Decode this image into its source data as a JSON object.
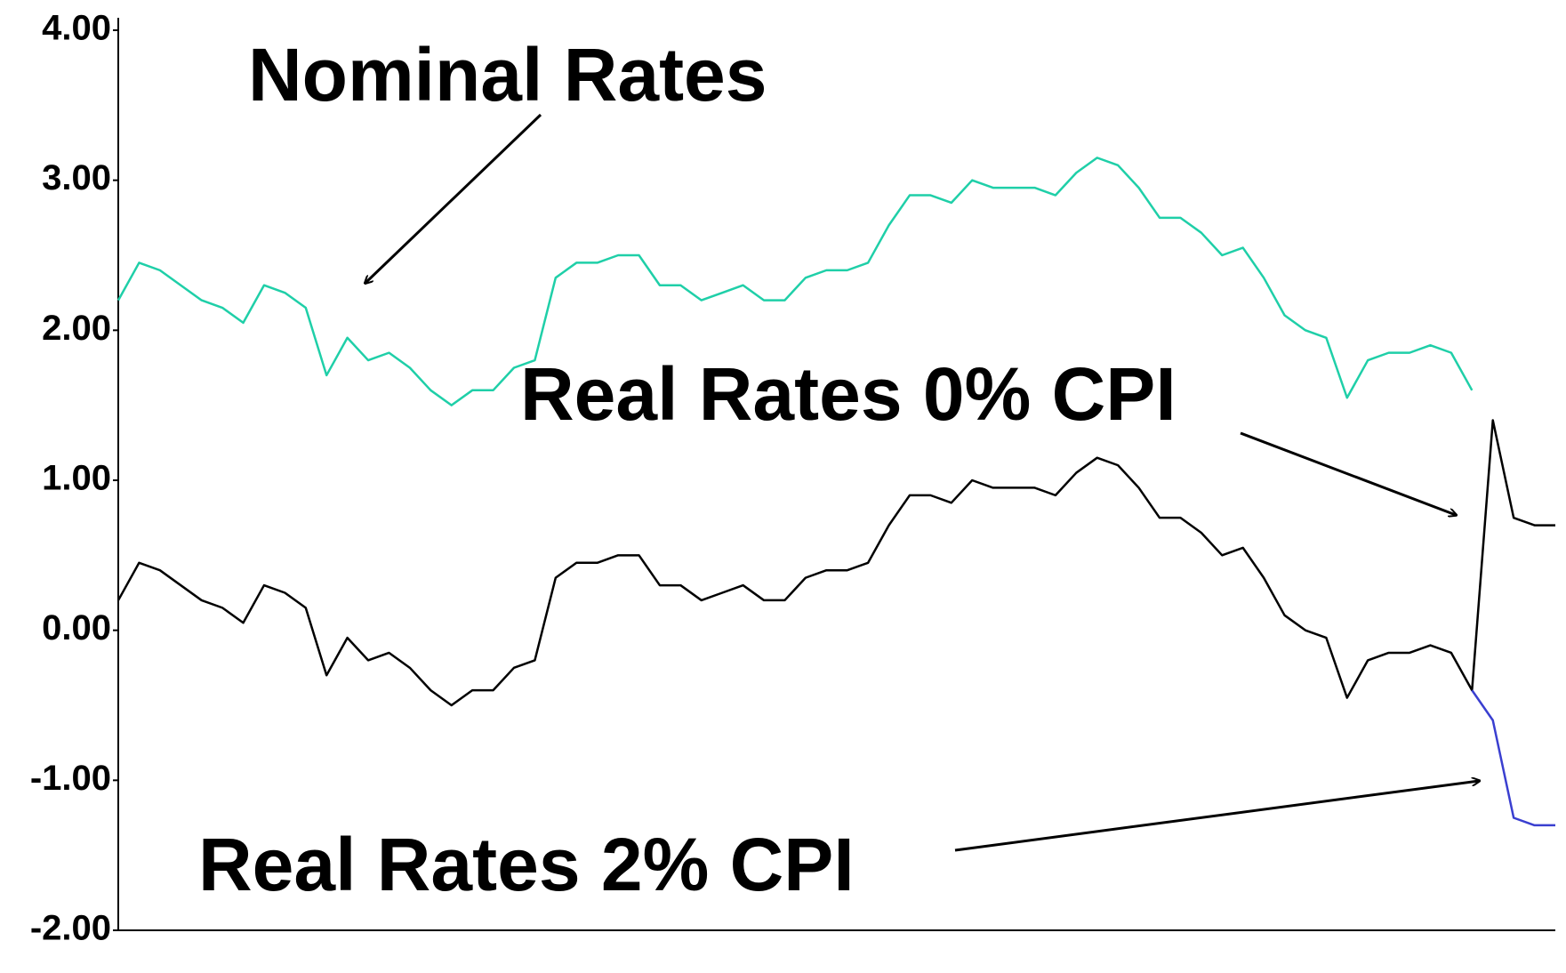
{
  "chart_data": {
    "type": "line",
    "annotations": [
      "Nominal Rates",
      "Real Rates 0% CPI",
      "Real Rates 2% CPI"
    ],
    "x": [
      0,
      1,
      2,
      3,
      4,
      5,
      6,
      7,
      8,
      9,
      10,
      11,
      12,
      13,
      14,
      15,
      16,
      17,
      18,
      19,
      20,
      21,
      22,
      23,
      24,
      25,
      26,
      27,
      28,
      29,
      30,
      31,
      32,
      33,
      34,
      35,
      36,
      37,
      38,
      39,
      40,
      41,
      42,
      43,
      44,
      45,
      46,
      47,
      48,
      49,
      50,
      51,
      52,
      53,
      54,
      55,
      56,
      57,
      58,
      59,
      60,
      61,
      62,
      63,
      64,
      65,
      66,
      67,
      68,
      69
    ],
    "xlim": [
      0,
      69
    ],
    "series": [
      {
        "name": "Nominal Rates",
        "color": "#1fcfa8",
        "values": [
          2.2,
          2.45,
          2.4,
          2.3,
          2.2,
          2.15,
          2.05,
          2.3,
          2.25,
          2.15,
          1.7,
          1.95,
          1.8,
          1.85,
          1.75,
          1.6,
          1.5,
          1.6,
          1.6,
          1.75,
          1.8,
          2.35,
          2.45,
          2.45,
          2.5,
          2.5,
          2.3,
          2.3,
          2.2,
          2.25,
          2.3,
          2.2,
          2.2,
          2.35,
          2.4,
          2.4,
          2.45,
          2.7,
          2.9,
          2.9,
          2.85,
          3.0,
          2.95,
          2.95,
          2.95,
          2.9,
          3.05,
          3.15,
          3.1,
          2.95,
          2.75,
          2.75,
          2.65,
          2.5,
          2.55,
          2.35,
          2.1,
          2.0,
          1.95,
          1.55,
          1.8,
          1.85,
          1.85,
          1.9,
          1.85,
          1.6,
          null,
          null,
          null,
          null
        ]
      },
      {
        "name": "Real Rates 0% CPI",
        "color": "#000000",
        "values": [
          0.2,
          0.45,
          0.4,
          0.3,
          0.2,
          0.15,
          0.05,
          0.3,
          0.25,
          0.15,
          -0.3,
          -0.05,
          -0.2,
          -0.15,
          -0.25,
          -0.4,
          -0.5,
          -0.4,
          -0.4,
          -0.25,
          -0.2,
          0.35,
          0.45,
          0.45,
          0.5,
          0.5,
          0.3,
          0.3,
          0.2,
          0.25,
          0.3,
          0.2,
          0.2,
          0.35,
          0.4,
          0.4,
          0.45,
          0.7,
          0.9,
          0.9,
          0.85,
          1.0,
          0.95,
          0.95,
          0.95,
          0.9,
          1.05,
          1.15,
          1.1,
          0.95,
          0.75,
          0.75,
          0.65,
          0.5,
          0.55,
          0.35,
          0.1,
          0.0,
          -0.05,
          -0.45,
          -0.2,
          -0.15,
          -0.15,
          -0.1,
          -0.15,
          -0.4,
          1.4,
          0.75,
          0.7,
          0.7
        ]
      },
      {
        "name": "Real Rates 2% CPI",
        "color": "#3a3fd0",
        "values": [
          null,
          null,
          null,
          null,
          null,
          null,
          null,
          null,
          null,
          null,
          null,
          null,
          null,
          null,
          null,
          null,
          null,
          null,
          null,
          null,
          null,
          null,
          null,
          null,
          null,
          null,
          null,
          null,
          null,
          null,
          null,
          null,
          null,
          null,
          null,
          null,
          null,
          null,
          null,
          null,
          null,
          null,
          null,
          null,
          null,
          null,
          null,
          null,
          null,
          null,
          null,
          null,
          null,
          null,
          null,
          null,
          null,
          null,
          null,
          null,
          null,
          null,
          null,
          null,
          null,
          -0.4,
          -0.6,
          -1.25,
          -1.3,
          -1.3
        ]
      }
    ],
    "ylim": [
      -2,
      4
    ],
    "yticks": [
      {
        "value": 4,
        "label": "4.00"
      },
      {
        "value": 3,
        "label": "3.00"
      },
      {
        "value": 2,
        "label": "2.00"
      },
      {
        "value": 1,
        "label": "1.00"
      },
      {
        "value": 0,
        "label": "0.00"
      },
      {
        "value": -1,
        "label": "-1.00"
      },
      {
        "value": -2,
        "label": "-2.00"
      }
    ],
    "grid": false
  }
}
